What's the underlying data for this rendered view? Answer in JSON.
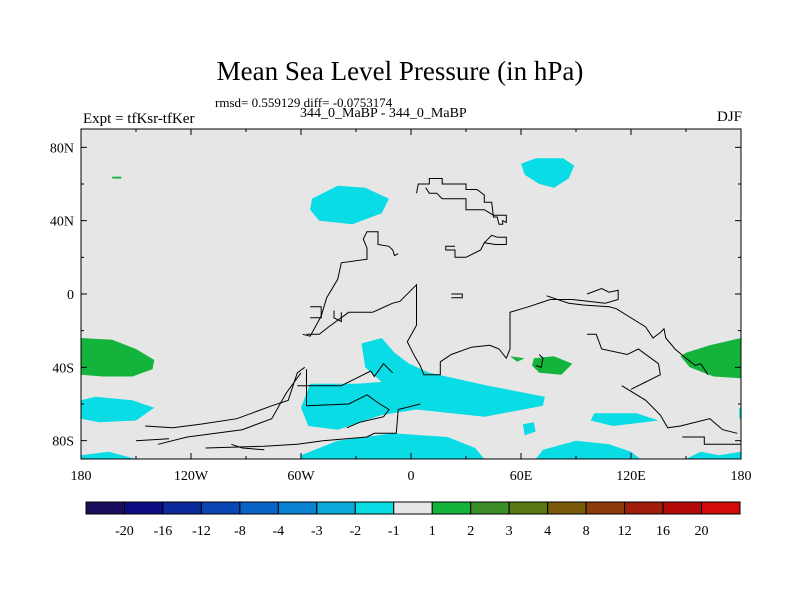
{
  "title": "Mean Sea Level Pressure (in hPa)",
  "stats": "rmsd= 0.559129 diff= -0.0753174",
  "subtitle": "344_0_MaBP - 344_0_MaBP",
  "left_label": "Expt = tfKsr-tfKer",
  "right_label": "DJF",
  "chart_data": {
    "type": "heatmap",
    "title": "Mean Sea Level Pressure (in hPa)",
    "subtitle": "344_0_MaBP - 344_0_MaBP",
    "experiment": "Expt = tfKsr-tfKer",
    "season": "DJF",
    "rmsd": 0.559129,
    "diff": -0.0753174,
    "xlim": [
      -180,
      180
    ],
    "ylim": [
      -90,
      90
    ],
    "x_ticks": [
      {
        "value": -180,
        "label": "180"
      },
      {
        "value": -120,
        "label": "120W"
      },
      {
        "value": -60,
        "label": "60W"
      },
      {
        "value": 0,
        "label": "0"
      },
      {
        "value": 60,
        "label": "60E"
      },
      {
        "value": 120,
        "label": "120E"
      },
      {
        "value": 180,
        "label": "180"
      }
    ],
    "y_ticks": [
      {
        "value": 80,
        "label": "80N"
      },
      {
        "value": 40,
        "label": "40N"
      },
      {
        "value": 0,
        "label": "0"
      },
      {
        "value": -40,
        "label": "40S"
      },
      {
        "value": -80,
        "label": "80S"
      }
    ],
    "background_color": "#e6e6e6",
    "colorbar": {
      "labels": [
        "-20",
        "-16",
        "-12",
        "-8",
        "-4",
        "-3",
        "-2",
        "-1",
        "1",
        "2",
        "3",
        "4",
        "8",
        "12",
        "16",
        "20"
      ],
      "colors": [
        "#1a0f5e",
        "#0c0c82",
        "#0c2a9c",
        "#0a46b4",
        "#0a64c8",
        "#0a82d2",
        "#0aaadc",
        "#0adce6",
        "#e6e6e6",
        "#14b43c",
        "#3c8c28",
        "#5a7814",
        "#785a0a",
        "#8c3c0a",
        "#a01e0a",
        "#b40a0a",
        "#d20a0a"
      ]
    },
    "regions": [
      {
        "name": "mid-atlantic-north-low",
        "polygon": [
          [
            -54,
            52
          ],
          [
            -40,
            59
          ],
          [
            -25,
            58
          ],
          [
            -12,
            52
          ],
          [
            -16,
            44
          ],
          [
            -32,
            38
          ],
          [
            -50,
            40
          ],
          [
            -55,
            46
          ]
        ],
        "level": "-1",
        "color": "#0adce6"
      },
      {
        "name": "arctic-asia-low",
        "polygon": [
          [
            60,
            71
          ],
          [
            68,
            74
          ],
          [
            83,
            74
          ],
          [
            89,
            70
          ],
          [
            86,
            63
          ],
          [
            78,
            58
          ],
          [
            70,
            60
          ],
          [
            62,
            65
          ]
        ],
        "level": "-1",
        "color": "#0adce6"
      },
      {
        "name": "south-atlantic-low",
        "polygon": [
          [
            -27,
            -27
          ],
          [
            -16,
            -24
          ],
          [
            -9,
            -32
          ],
          [
            -1,
            -38
          ],
          [
            10,
            -43
          ],
          [
            42,
            -50
          ],
          [
            73,
            -56
          ],
          [
            72,
            -61
          ],
          [
            40,
            -67
          ],
          [
            3,
            -63
          ],
          [
            -16,
            -66
          ],
          [
            -40,
            -74
          ],
          [
            -56,
            -72
          ],
          [
            -60,
            -62
          ],
          [
            -55,
            -49
          ],
          [
            -30,
            -49
          ],
          [
            -16,
            -48
          ],
          [
            -25,
            -40
          ]
        ],
        "level": "-1",
        "color": "#0adce6"
      },
      {
        "name": "south-pacific-low-west",
        "polygon": [
          [
            -180,
            -58
          ],
          [
            -172,
            -56
          ],
          [
            -152,
            -58
          ],
          [
            -140,
            -62
          ],
          [
            -150,
            -69
          ],
          [
            -170,
            -70
          ],
          [
            -180,
            -68
          ]
        ],
        "level": "-1",
        "color": "#0adce6"
      },
      {
        "name": "southern-ocean-low-indian",
        "polygon": [
          [
            100,
            -65
          ],
          [
            123,
            -65
          ],
          [
            135,
            -69
          ],
          [
            110,
            -72
          ],
          [
            98,
            -69
          ]
        ],
        "level": "-1",
        "color": "#0adce6"
      },
      {
        "name": "antarctic-low-atlantic",
        "polygon": [
          [
            -60,
            -88
          ],
          [
            -40,
            -80
          ],
          [
            -10,
            -76
          ],
          [
            20,
            -78
          ],
          [
            35,
            -84
          ],
          [
            40,
            -90
          ],
          [
            -60,
            -90
          ]
        ],
        "level": "-1",
        "color": "#0adce6"
      },
      {
        "name": "antarctic-low-indian",
        "polygon": [
          [
            68,
            -90
          ],
          [
            72,
            -85
          ],
          [
            90,
            -80
          ],
          [
            108,
            -82
          ],
          [
            120,
            -86
          ],
          [
            125,
            -90
          ]
        ],
        "level": "-1",
        "color": "#0adce6"
      },
      {
        "name": "antarctic-low-pacific",
        "polygon": [
          [
            -180,
            -88
          ],
          [
            -165,
            -86
          ],
          [
            -150,
            -90
          ],
          [
            -180,
            -90
          ]
        ],
        "level": "-1",
        "color": "#0adce6"
      },
      {
        "name": "antarctic-low-east",
        "polygon": [
          [
            150,
            -90
          ],
          [
            158,
            -86
          ],
          [
            168,
            -88
          ],
          [
            180,
            -86
          ],
          [
            180,
            -90
          ]
        ],
        "level": "-1",
        "color": "#0adce6"
      },
      {
        "name": "southern-ocean-low-east-edge",
        "polygon": [
          [
            179,
            -62
          ],
          [
            180,
            -62
          ],
          [
            180,
            -68
          ],
          [
            179,
            -68
          ]
        ],
        "level": "-1",
        "color": "#0adce6"
      },
      {
        "name": "southern-ocean-small-low",
        "polygon": [
          [
            61,
            -71
          ],
          [
            67,
            -70
          ],
          [
            68,
            -75
          ],
          [
            62,
            -77
          ]
        ],
        "level": "-1",
        "color": "#0adce6"
      },
      {
        "name": "pacific-high-west",
        "polygon": [
          [
            -180,
            -24
          ],
          [
            -163,
            -25
          ],
          [
            -150,
            -30
          ],
          [
            -140,
            -36
          ],
          [
            -141,
            -41
          ],
          [
            -152,
            -45
          ],
          [
            -168,
            -45
          ],
          [
            -180,
            -44
          ]
        ],
        "level": "1",
        "color": "#14b43c"
      },
      {
        "name": "pacific-high-east",
        "polygon": [
          [
            180,
            -24
          ],
          [
            163,
            -28
          ],
          [
            150,
            -32
          ],
          [
            147,
            -34
          ],
          [
            152,
            -40
          ],
          [
            165,
            -45
          ],
          [
            180,
            -46
          ]
        ],
        "level": "1",
        "color": "#14b43c"
      },
      {
        "name": "indian-ocean-high",
        "polygon": [
          [
            67,
            -35
          ],
          [
            78,
            -34
          ],
          [
            88,
            -38
          ],
          [
            82,
            -44
          ],
          [
            70,
            -43
          ],
          [
            66,
            -39
          ]
        ],
        "level": "1",
        "color": "#14b43c"
      },
      {
        "name": "indian-ocean-small-high",
        "polygon": [
          [
            54,
            -34
          ],
          [
            62,
            -35
          ],
          [
            58,
            -37
          ]
        ],
        "level": "1",
        "color": "#14b43c"
      },
      {
        "name": "pacific-tiny-high",
        "polygon": [
          [
            -163,
            64
          ],
          [
            -158,
            64
          ],
          [
            -158,
            63
          ],
          [
            -163,
            63
          ]
        ],
        "level": "1",
        "color": "#14b43c"
      }
    ],
    "coastlines": [
      [
        [
          -112,
          -84
        ],
        [
          -80,
          -83
        ],
        [
          -62,
          -82
        ],
        [
          -48,
          -80
        ],
        [
          -24,
          -78
        ],
        [
          -20,
          -76
        ],
        [
          -8,
          -76
        ],
        [
          -7,
          -63
        ],
        [
          5,
          -60
        ]
      ],
      [
        [
          -145,
          -72
        ],
        [
          -130,
          -73
        ],
        [
          -115,
          -71
        ],
        [
          -95,
          -68
        ],
        [
          -76,
          -61
        ],
        [
          -67,
          -58
        ],
        [
          -62,
          -43
        ],
        [
          -58,
          -40
        ]
      ],
      [
        [
          -62,
          -50
        ],
        [
          -38,
          -50
        ],
        [
          -22,
          -42
        ],
        [
          -20,
          -45
        ],
        [
          -15,
          -38
        ],
        [
          -12,
          -41
        ],
        [
          -10,
          -43
        ]
      ],
      [
        [
          -57,
          -61
        ],
        [
          -34,
          -60
        ],
        [
          -24,
          -55
        ],
        [
          -17,
          -60
        ],
        [
          -12,
          -63
        ],
        [
          -15,
          -67
        ],
        [
          -28,
          -70
        ],
        [
          -35,
          -73
        ]
      ],
      [
        [
          -57,
          -41
        ],
        [
          -57,
          -61
        ]
      ],
      [
        [
          -138,
          -82
        ],
        [
          -122,
          -78
        ],
        [
          -92,
          -74
        ],
        [
          -76,
          -68
        ],
        [
          -68,
          -54
        ],
        [
          -60,
          -43
        ]
      ],
      [
        [
          -59,
          -22
        ],
        [
          -55,
          -23
        ],
        [
          -49,
          -12
        ],
        [
          -46,
          -2
        ],
        [
          -40,
          8
        ],
        [
          -38,
          17
        ],
        [
          -24,
          19
        ],
        [
          -24,
          25
        ],
        [
          -26,
          30
        ],
        [
          -24,
          34
        ],
        [
          -18,
          34
        ],
        [
          -18,
          27
        ],
        [
          -12,
          26
        ],
        [
          -10,
          24
        ],
        [
          -9,
          21
        ],
        [
          -7,
          22
        ]
      ],
      [
        [
          -57,
          -22
        ],
        [
          -50,
          -22
        ],
        [
          -45,
          -18
        ],
        [
          -34,
          -10
        ],
        [
          -21,
          -10
        ],
        [
          -10,
          -5
        ],
        [
          -6,
          -4
        ],
        [
          3,
          5
        ],
        [
          3,
          -17
        ],
        [
          -2,
          -26
        ],
        [
          2,
          -34
        ],
        [
          5,
          -39
        ],
        [
          7,
          -44
        ],
        [
          16,
          -44
        ],
        [
          16,
          -37
        ],
        [
          22,
          -33
        ],
        [
          33,
          -29
        ],
        [
          43,
          -28
        ],
        [
          48,
          -30
        ],
        [
          52,
          -35
        ],
        [
          54,
          -30
        ],
        [
          54,
          -10
        ],
        [
          64,
          -7
        ],
        [
          76,
          -3
        ],
        [
          88,
          -3
        ],
        [
          106,
          -5
        ],
        [
          113,
          -3
        ],
        [
          113,
          2
        ],
        [
          108,
          1
        ],
        [
          104,
          3
        ],
        [
          96,
          0
        ]
      ],
      [
        [
          -42,
          -9
        ],
        [
          -42,
          -13
        ],
        [
          -38,
          -15
        ],
        [
          -38,
          -10
        ]
      ],
      [
        [
          3,
          55
        ],
        [
          4,
          60
        ],
        [
          10,
          60
        ],
        [
          10,
          63
        ],
        [
          17,
          63
        ],
        [
          17,
          60
        ],
        [
          30,
          60
        ],
        [
          30,
          57
        ],
        [
          36,
          57
        ],
        [
          40,
          54
        ],
        [
          40,
          50
        ],
        [
          44,
          50
        ],
        [
          45,
          42
        ],
        [
          47,
          42
        ],
        [
          48,
          38
        ],
        [
          50,
          38
        ],
        [
          50,
          40
        ],
        [
          52,
          39
        ],
        [
          52,
          43
        ],
        [
          45,
          43
        ],
        [
          40,
          46
        ],
        [
          30,
          46
        ],
        [
          30,
          52
        ],
        [
          17,
          52
        ],
        [
          14,
          55
        ],
        [
          10,
          55
        ],
        [
          8,
          58
        ]
      ],
      [
        [
          47,
          31
        ],
        [
          52,
          31
        ],
        [
          52,
          27
        ],
        [
          46,
          27
        ],
        [
          40,
          28
        ],
        [
          38,
          24
        ],
        [
          30,
          20
        ],
        [
          24,
          20
        ],
        [
          24,
          24
        ],
        [
          19,
          24
        ],
        [
          19,
          26
        ],
        [
          24,
          26
        ]
      ],
      [
        [
          47,
          31
        ],
        [
          44,
          32
        ],
        [
          40,
          28
        ]
      ],
      [
        [
          74,
          -1
        ],
        [
          86,
          -5
        ],
        [
          94,
          -6
        ],
        [
          108,
          -7
        ],
        [
          112,
          -8
        ],
        [
          128,
          -18
        ],
        [
          132,
          -24
        ],
        [
          136,
          -21
        ],
        [
          138,
          -19
        ],
        [
          139,
          -24
        ],
        [
          144,
          -30
        ],
        [
          150,
          -35
        ],
        [
          155,
          -39
        ],
        [
          158,
          -38
        ],
        [
          162,
          -44
        ]
      ],
      [
        [
          96,
          -22
        ],
        [
          101,
          -22
        ],
        [
          104,
          -30
        ],
        [
          118,
          -33
        ],
        [
          124,
          -30
        ],
        [
          135,
          -38
        ],
        [
          136,
          -44
        ],
        [
          128,
          -48
        ],
        [
          120,
          -52
        ]
      ],
      [
        [
          115,
          -50
        ],
        [
          128,
          -58
        ],
        [
          136,
          -66
        ],
        [
          140,
          -73
        ],
        [
          147,
          -72
        ],
        [
          163,
          -68
        ],
        [
          170,
          -74
        ],
        [
          178,
          -76
        ]
      ],
      [
        [
          148,
          -78
        ],
        [
          160,
          -78
        ],
        [
          160,
          -82
        ],
        [
          180,
          -82
        ]
      ],
      [
        [
          -98,
          -82
        ],
        [
          -92,
          -84
        ],
        [
          -80,
          -85
        ]
      ],
      [
        [
          70,
          -33
        ],
        [
          72,
          -35
        ],
        [
          71,
          -40
        ],
        [
          68,
          -39
        ]
      ],
      [
        [
          -150,
          -80
        ],
        [
          -132,
          -79
        ]
      ],
      [
        [
          22,
          0
        ],
        [
          28,
          0
        ],
        [
          28,
          -2
        ],
        [
          22,
          -2
        ]
      ],
      [
        [
          -55,
          -7
        ],
        [
          -49,
          -7
        ],
        [
          -49,
          -13
        ],
        [
          -55,
          -13
        ]
      ]
    ]
  }
}
